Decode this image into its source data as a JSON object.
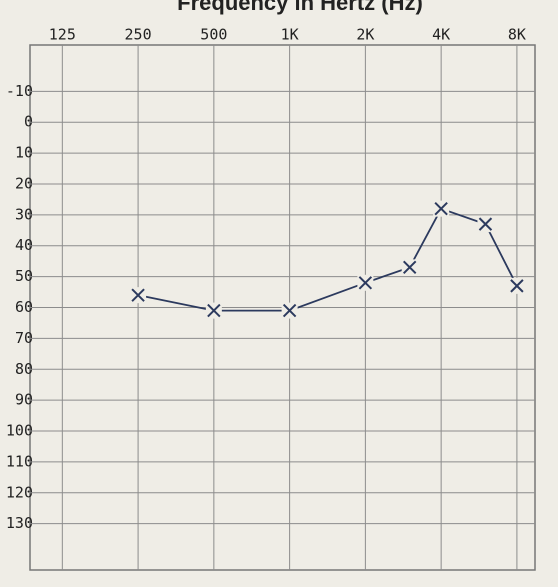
{
  "chart_data": {
    "type": "line",
    "title": "Frequency in Hertz (Hz)",
    "x": [
      250,
      500,
      1000,
      2000,
      3000,
      4000,
      6000,
      8000
    ],
    "values": [
      56,
      61,
      61,
      52,
      47,
      28,
      33,
      53
    ],
    "color": "#2c3a5e",
    "xscale": "log",
    "xlim": [
      93,
      9440
    ],
    "xticks": [
      125,
      250,
      500,
      {
        "value": 1000,
        "label": "1K"
      },
      {
        "value": 2000,
        "label": "2K"
      },
      {
        "value": 4000,
        "label": "4K"
      },
      {
        "value": 8000,
        "label": "8K"
      }
    ],
    "ylim": [
      -25,
      145
    ],
    "y_inverted": true,
    "yticks": [
      -10,
      0,
      10,
      20,
      30,
      40,
      50,
      60,
      70,
      80,
      90,
      100,
      110,
      120,
      130
    ],
    "grid": true
  }
}
